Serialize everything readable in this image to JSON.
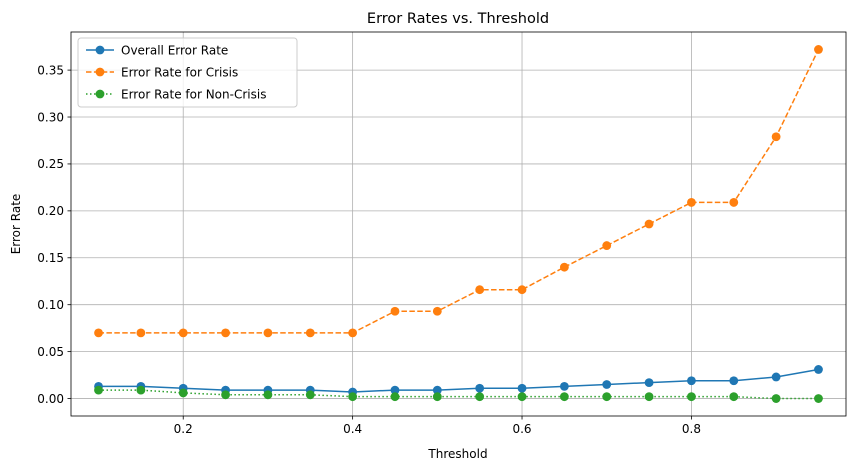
{
  "chart_data": {
    "type": "line",
    "title": "Error Rates vs. Threshold",
    "xlabel": "Threshold",
    "ylabel": "Error Rate",
    "xlim": [
      0.0675,
      0.9825
    ],
    "ylim": [
      -0.0186,
      0.3906
    ],
    "x_ticks": [
      0.2,
      0.4,
      0.6,
      0.8
    ],
    "x_tick_labels": [
      "0.2",
      "0.4",
      "0.6",
      "0.8"
    ],
    "y_ticks": [
      0.0,
      0.05,
      0.1,
      0.15,
      0.2,
      0.25,
      0.3,
      0.35
    ],
    "y_tick_labels": [
      "0.00",
      "0.05",
      "0.10",
      "0.15",
      "0.20",
      "0.25",
      "0.30",
      "0.35"
    ],
    "grid": true,
    "legend_position": "top-left",
    "x": [
      0.1,
      0.15,
      0.2,
      0.25,
      0.3,
      0.35,
      0.4,
      0.45,
      0.5,
      0.55,
      0.6,
      0.65,
      0.7,
      0.75,
      0.8,
      0.85,
      0.9,
      0.95
    ],
    "series": [
      {
        "name": "Overall Error Rate",
        "color": "#1f77b4",
        "linestyle": "solid",
        "values": [
          0.013,
          0.013,
          0.011,
          0.009,
          0.009,
          0.009,
          0.007,
          0.009,
          0.009,
          0.011,
          0.011,
          0.013,
          0.015,
          0.017,
          0.019,
          0.019,
          0.023,
          0.031
        ]
      },
      {
        "name": "Error Rate for Crisis",
        "color": "#ff7f0e",
        "linestyle": "dashed",
        "values": [
          0.07,
          0.07,
          0.07,
          0.07,
          0.07,
          0.07,
          0.07,
          0.093,
          0.093,
          0.116,
          0.116,
          0.14,
          0.163,
          0.186,
          0.209,
          0.209,
          0.279,
          0.372
        ]
      },
      {
        "name": "Error Rate for Non-Crisis",
        "color": "#2ca02c",
        "linestyle": "dotted",
        "values": [
          0.009,
          0.009,
          0.006,
          0.004,
          0.004,
          0.004,
          0.002,
          0.002,
          0.002,
          0.002,
          0.002,
          0.002,
          0.002,
          0.002,
          0.002,
          0.002,
          0.0,
          0.0
        ]
      }
    ]
  }
}
